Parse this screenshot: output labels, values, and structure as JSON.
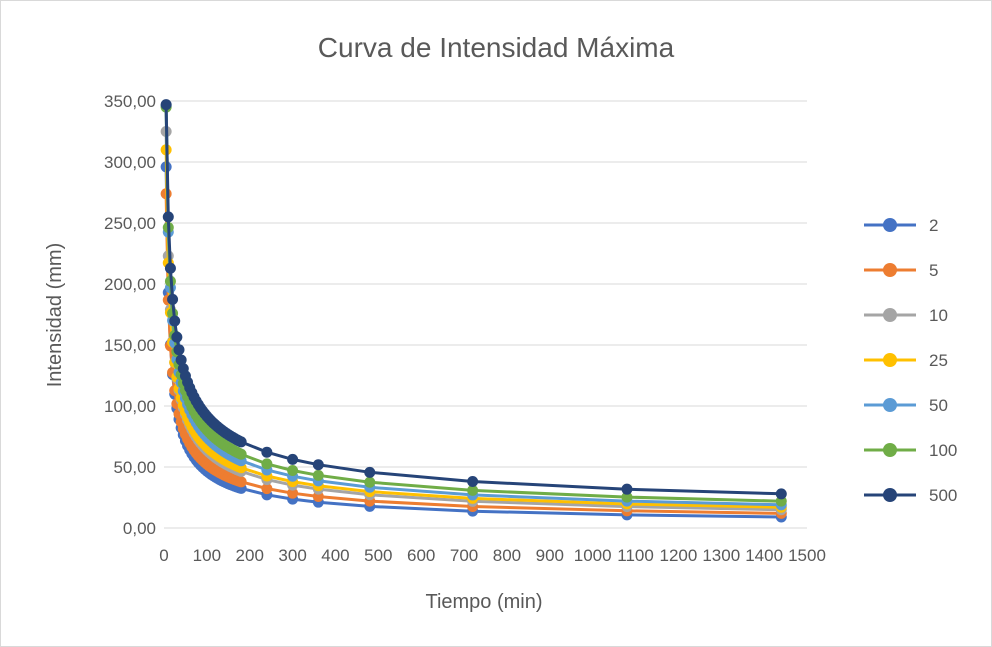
{
  "chart_data": {
    "type": "line",
    "title": "Curva de Intensidad Máxima",
    "xlabel": "Tiempo (min)",
    "ylabel": "Intensidad (mm)",
    "xlim": [
      0,
      1500
    ],
    "ylim": [
      0,
      350
    ],
    "x_ticks": [
      0,
      100,
      200,
      300,
      400,
      500,
      600,
      700,
      800,
      900,
      1000,
      1100,
      1200,
      1300,
      1400,
      1500
    ],
    "y_ticks": [
      0,
      50,
      100,
      150,
      200,
      250,
      300,
      350
    ],
    "y_tick_labels": [
      "0,00",
      "50,00",
      "100,00",
      "150,00",
      "200,00",
      "250,00",
      "300,00",
      "350,00"
    ],
    "grid": "horizontal",
    "legend_position": "right",
    "x": [
      5,
      10,
      15,
      20,
      25,
      30,
      35,
      40,
      45,
      50,
      55,
      60,
      65,
      70,
      75,
      80,
      85,
      90,
      95,
      100,
      105,
      110,
      115,
      120,
      125,
      130,
      135,
      140,
      145,
      150,
      155,
      160,
      165,
      170,
      175,
      180,
      240,
      300,
      360,
      480,
      720,
      1080,
      1440
    ],
    "series": [
      {
        "name": "2",
        "color": "#4472C4",
        "i_at_5": 296.0,
        "i_at_1440": 9.0
      },
      {
        "name": "5",
        "color": "#ED7D31",
        "i_at_5": 274.0,
        "i_at_1440": 12.0
      },
      {
        "name": "10",
        "color": "#A5A5A5",
        "i_at_5": 325.0,
        "i_at_1440": 15.0
      },
      {
        "name": "25",
        "color": "#FFC000",
        "i_at_5": 310.0,
        "i_at_1440": 17.0
      },
      {
        "name": "50",
        "color": "#5B9BD5",
        "i_at_5": 346.0,
        "i_at_1440": 19.0
      },
      {
        "name": "100",
        "color": "#70AD47",
        "i_at_5": 345.0,
        "i_at_1440": 22.0
      },
      {
        "name": "500",
        "color": "#264478",
        "i_at_5": 347.0,
        "i_at_1440": 28.0
      }
    ]
  }
}
